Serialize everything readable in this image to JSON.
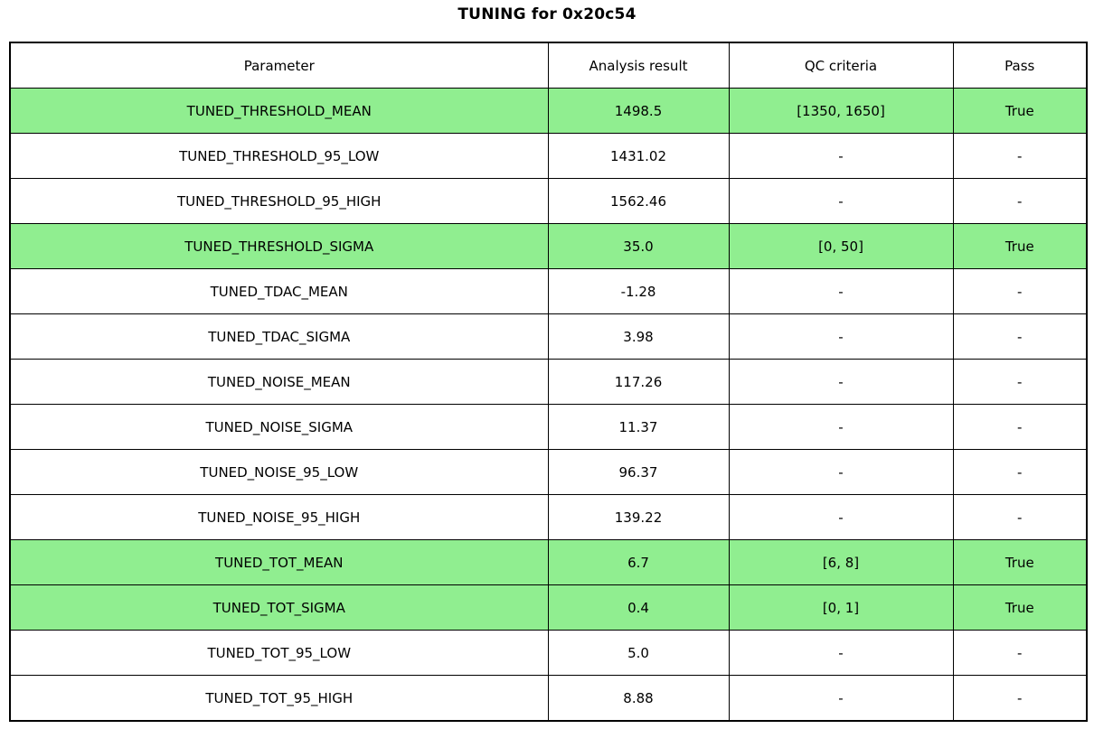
{
  "title": "TUNING for 0x20c54",
  "colors": {
    "highlight": "#90ee90",
    "border": "#000000",
    "background": "#ffffff"
  },
  "chart_data": {
    "type": "table",
    "title": "TUNING for 0x20c54",
    "columns": [
      "Parameter",
      "Analysis result",
      "QC criteria",
      "Pass"
    ],
    "rows": [
      {
        "param": "TUNED_THRESHOLD_MEAN",
        "result": "1498.5",
        "qc": "[1350, 1650]",
        "pass": "True",
        "highlighted": true
      },
      {
        "param": "TUNED_THRESHOLD_95_LOW",
        "result": "1431.02",
        "qc": "-",
        "pass": "-",
        "highlighted": false
      },
      {
        "param": "TUNED_THRESHOLD_95_HIGH",
        "result": "1562.46",
        "qc": "-",
        "pass": "-",
        "highlighted": false
      },
      {
        "param": "TUNED_THRESHOLD_SIGMA",
        "result": "35.0",
        "qc": "[0, 50]",
        "pass": "True",
        "highlighted": true
      },
      {
        "param": "TUNED_TDAC_MEAN",
        "result": "-1.28",
        "qc": "-",
        "pass": "-",
        "highlighted": false
      },
      {
        "param": "TUNED_TDAC_SIGMA",
        "result": "3.98",
        "qc": "-",
        "pass": "-",
        "highlighted": false
      },
      {
        "param": "TUNED_NOISE_MEAN",
        "result": "117.26",
        "qc": "-",
        "pass": "-",
        "highlighted": false
      },
      {
        "param": "TUNED_NOISE_SIGMA",
        "result": "11.37",
        "qc": "-",
        "pass": "-",
        "highlighted": false
      },
      {
        "param": "TUNED_NOISE_95_LOW",
        "result": "96.37",
        "qc": "-",
        "pass": "-",
        "highlighted": false
      },
      {
        "param": "TUNED_NOISE_95_HIGH",
        "result": "139.22",
        "qc": "-",
        "pass": "-",
        "highlighted": false
      },
      {
        "param": "TUNED_TOT_MEAN",
        "result": "6.7",
        "qc": "[6, 8]",
        "pass": "True",
        "highlighted": true
      },
      {
        "param": "TUNED_TOT_SIGMA",
        "result": "0.4",
        "qc": "[0, 1]",
        "pass": "True",
        "highlighted": true
      },
      {
        "param": "TUNED_TOT_95_LOW",
        "result": "5.0",
        "qc": "-",
        "pass": "-",
        "highlighted": false
      },
      {
        "param": "TUNED_TOT_95_HIGH",
        "result": "8.88",
        "qc": "-",
        "pass": "-",
        "highlighted": false
      }
    ]
  }
}
